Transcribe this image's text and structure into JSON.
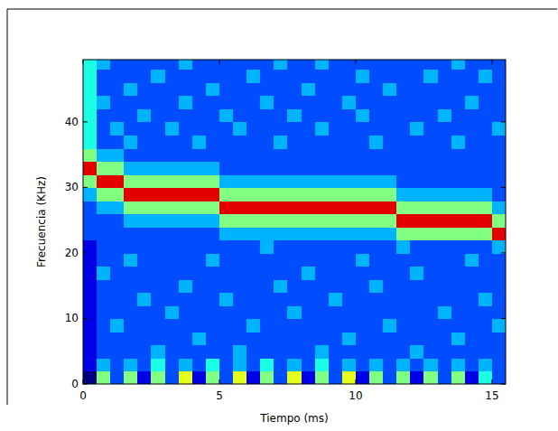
{
  "chart_data": {
    "type": "heatmap",
    "x_label": "Tiempo (ms)",
    "y_label": "Frecuencia (KHz)",
    "xlim": [
      0,
      15.5
    ],
    "ylim": [
      0,
      49.5
    ],
    "xticks": [
      0,
      5,
      10,
      15
    ],
    "yticks": [
      0,
      10,
      20,
      30,
      40
    ],
    "x_bins": [
      0,
      0.5,
      1,
      1.5,
      2,
      2.5,
      3,
      3.5,
      4,
      4.5,
      5,
      5.5,
      6,
      6.5,
      7,
      7.5,
      8,
      8.5,
      9,
      9.5,
      10,
      10.5,
      11,
      11.5,
      12,
      12.5,
      13,
      13.5,
      14,
      14.5,
      15,
      15.5
    ],
    "y_bins": [
      0,
      2,
      4,
      6,
      8,
      10,
      12,
      14,
      16,
      18,
      20,
      22,
      24,
      26,
      28,
      30,
      32,
      34,
      36,
      38,
      40,
      42,
      44,
      46,
      48,
      50
    ],
    "color_range": [
      0,
      10
    ],
    "cells": [
      [
        0,
        5,
        2,
        5,
        1,
        5,
        2,
        6,
        1,
        5,
        2,
        6,
        1,
        5,
        2,
        6,
        1,
        5,
        2,
        6,
        1,
        5,
        2,
        5,
        1,
        5,
        2,
        5,
        1,
        4,
        2
      ],
      [
        1,
        3,
        2,
        3,
        2,
        4,
        2,
        3,
        2,
        4,
        2,
        3,
        2,
        4,
        2,
        3,
        2,
        4,
        2,
        3,
        2,
        3,
        2,
        3,
        2,
        3,
        2,
        3,
        2,
        3,
        2
      ],
      [
        1,
        2,
        2,
        2,
        2,
        3,
        2,
        2,
        2,
        2,
        2,
        3,
        2,
        2,
        2,
        2,
        2,
        3,
        2,
        2,
        2,
        2,
        2,
        2,
        3,
        2,
        2,
        2,
        2,
        2,
        2
      ],
      [
        1,
        2,
        2,
        2,
        2,
        2,
        2,
        2,
        3,
        2,
        2,
        2,
        2,
        2,
        2,
        2,
        2,
        2,
        2,
        3,
        2,
        2,
        2,
        2,
        2,
        2,
        2,
        3,
        2,
        2,
        2
      ],
      [
        1,
        2,
        3,
        2,
        2,
        2,
        2,
        2,
        2,
        2,
        2,
        2,
        3,
        2,
        2,
        2,
        2,
        2,
        2,
        2,
        2,
        2,
        3,
        2,
        2,
        2,
        2,
        2,
        2,
        2,
        3
      ],
      [
        1,
        2,
        2,
        2,
        2,
        2,
        3,
        2,
        2,
        2,
        2,
        2,
        2,
        2,
        2,
        3,
        2,
        2,
        2,
        2,
        2,
        2,
        2,
        2,
        2,
        2,
        3,
        2,
        2,
        2,
        2
      ],
      [
        1,
        2,
        2,
        2,
        3,
        2,
        2,
        2,
        2,
        2,
        3,
        2,
        2,
        2,
        2,
        2,
        2,
        2,
        3,
        2,
        2,
        2,
        2,
        2,
        2,
        2,
        2,
        2,
        2,
        3,
        2
      ],
      [
        1,
        2,
        2,
        2,
        2,
        2,
        2,
        3,
        2,
        2,
        2,
        2,
        2,
        2,
        3,
        2,
        2,
        2,
        2,
        2,
        2,
        3,
        2,
        2,
        2,
        2,
        2,
        2,
        2,
        2,
        2
      ],
      [
        1,
        3,
        2,
        2,
        2,
        2,
        2,
        2,
        2,
        2,
        2,
        2,
        2,
        2,
        2,
        2,
        3,
        2,
        2,
        2,
        2,
        2,
        2,
        2,
        3,
        2,
        2,
        2,
        2,
        2,
        2
      ],
      [
        1,
        2,
        2,
        3,
        2,
        2,
        2,
        2,
        2,
        3,
        2,
        2,
        2,
        2,
        2,
        2,
        2,
        2,
        2,
        2,
        3,
        2,
        2,
        2,
        2,
        2,
        2,
        2,
        3,
        2,
        2
      ],
      [
        1,
        2,
        2,
        2,
        2,
        2,
        2,
        2,
        2,
        2,
        2,
        2,
        2,
        3,
        2,
        2,
        2,
        2,
        2,
        2,
        2,
        2,
        2,
        3,
        2,
        2,
        2,
        2,
        2,
        2,
        3
      ],
      [
        2,
        2,
        2,
        2,
        2,
        2,
        2,
        2,
        2,
        2,
        3,
        3,
        3,
        3,
        3,
        3,
        3,
        3,
        3,
        3,
        3,
        3,
        3,
        5,
        5,
        5,
        5,
        5,
        5,
        5,
        9
      ],
      [
        2,
        2,
        2,
        3,
        3,
        3,
        3,
        3,
        3,
        3,
        5,
        5,
        5,
        5,
        5,
        5,
        5,
        5,
        5,
        5,
        5,
        5,
        5,
        9,
        9,
        9,
        9,
        9,
        9,
        9,
        5
      ],
      [
        2,
        3,
        3,
        5,
        5,
        5,
        5,
        5,
        5,
        5,
        9,
        9,
        9,
        9,
        9,
        9,
        9,
        9,
        9,
        9,
        9,
        9,
        9,
        5,
        5,
        5,
        5,
        5,
        5,
        5,
        3
      ],
      [
        3,
        5,
        5,
        9,
        9,
        9,
        9,
        9,
        9,
        9,
        5,
        5,
        5,
        5,
        5,
        5,
        5,
        5,
        5,
        5,
        5,
        5,
        5,
        3,
        3,
        3,
        3,
        3,
        3,
        3,
        2
      ],
      [
        5,
        9,
        9,
        5,
        5,
        5,
        5,
        5,
        5,
        5,
        3,
        3,
        3,
        3,
        3,
        3,
        3,
        3,
        3,
        3,
        3,
        3,
        3,
        2,
        2,
        2,
        2,
        2,
        2,
        2,
        2
      ],
      [
        9,
        5,
        5,
        3,
        3,
        3,
        3,
        3,
        3,
        3,
        2,
        2,
        2,
        2,
        2,
        2,
        2,
        2,
        2,
        2,
        2,
        2,
        2,
        2,
        2,
        2,
        2,
        2,
        2,
        2,
        2
      ],
      [
        5,
        3,
        3,
        2,
        2,
        2,
        2,
        2,
        2,
        2,
        2,
        2,
        2,
        2,
        2,
        2,
        2,
        2,
        2,
        2,
        2,
        2,
        2,
        2,
        2,
        2,
        2,
        2,
        2,
        2,
        2
      ],
      [
        4,
        2,
        2,
        3,
        2,
        2,
        2,
        2,
        3,
        2,
        2,
        2,
        2,
        2,
        3,
        2,
        2,
        2,
        2,
        2,
        2,
        3,
        2,
        2,
        2,
        2,
        2,
        3,
        2,
        2,
        2
      ],
      [
        4,
        2,
        3,
        2,
        2,
        2,
        3,
        2,
        2,
        2,
        2,
        3,
        2,
        2,
        2,
        2,
        2,
        3,
        2,
        2,
        2,
        2,
        2,
        2,
        3,
        2,
        2,
        2,
        2,
        2,
        3
      ],
      [
        4,
        2,
        2,
        2,
        3,
        2,
        2,
        2,
        2,
        2,
        3,
        2,
        2,
        2,
        2,
        3,
        2,
        2,
        2,
        2,
        3,
        2,
        2,
        2,
        2,
        2,
        3,
        2,
        2,
        2,
        2
      ],
      [
        4,
        3,
        2,
        2,
        2,
        2,
        2,
        3,
        2,
        2,
        2,
        2,
        2,
        3,
        2,
        2,
        2,
        2,
        2,
        3,
        2,
        2,
        2,
        2,
        2,
        2,
        2,
        2,
        3,
        2,
        2
      ],
      [
        4,
        2,
        2,
        3,
        2,
        2,
        2,
        2,
        2,
        3,
        2,
        2,
        2,
        2,
        2,
        2,
        3,
        2,
        2,
        2,
        2,
        2,
        3,
        2,
        2,
        2,
        2,
        2,
        2,
        2,
        2
      ],
      [
        4,
        2,
        2,
        2,
        2,
        3,
        2,
        2,
        2,
        2,
        2,
        2,
        3,
        2,
        2,
        2,
        2,
        2,
        2,
        2,
        3,
        2,
        2,
        2,
        2,
        3,
        2,
        2,
        2,
        3,
        2
      ],
      [
        4,
        3,
        2,
        2,
        2,
        2,
        2,
        3,
        2,
        2,
        2,
        2,
        2,
        2,
        3,
        2,
        2,
        3,
        2,
        2,
        2,
        2,
        2,
        2,
        2,
        2,
        2,
        3,
        2,
        2,
        2
      ]
    ]
  }
}
